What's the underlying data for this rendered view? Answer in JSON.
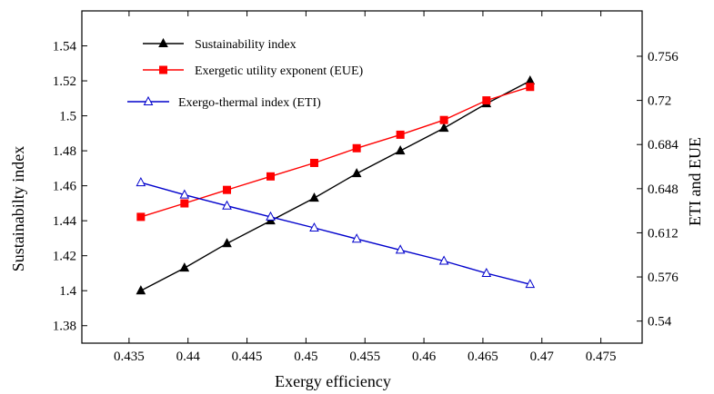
{
  "chart_data": {
    "type": "line",
    "title": "",
    "xlabel": "Exergy efficiency",
    "ylabel_left": "Sustainabilty index",
    "ylabel_right": "ETI and EUE",
    "xlim": [
      0.431,
      0.4785
    ],
    "ylim_left": [
      1.37,
      1.56
    ],
    "ylim_right": [
      0.522,
      0.793
    ],
    "x_ticks": [
      "0.435",
      "0.44",
      "0.445",
      "0.45",
      "0.455",
      "0.46",
      "0.465",
      "0.47",
      "0.475"
    ],
    "x_tick_values": [
      0.435,
      0.44,
      0.445,
      0.45,
      0.455,
      0.46,
      0.465,
      0.47,
      0.475
    ],
    "y_left_ticks": [
      "1.38",
      "1.4",
      "1.42",
      "1.44",
      "1.46",
      "1.48",
      "1.5",
      "1.52",
      "1.54"
    ],
    "y_left_tick_values": [
      1.38,
      1.4,
      1.42,
      1.44,
      1.46,
      1.48,
      1.5,
      1.52,
      1.54
    ],
    "y_right_ticks": [
      "0.54",
      "0.576",
      "0.612",
      "0.648",
      "0.684",
      "0.72",
      "0.756"
    ],
    "y_right_tick_values": [
      0.54,
      0.576,
      0.612,
      0.648,
      0.684,
      0.72,
      0.756
    ],
    "grid": false,
    "legend_position": "top-left",
    "series": [
      {
        "name": "Sustainability index",
        "axis": "left",
        "color": "#000000",
        "marker": "filled-triangle",
        "x": [
          0.436,
          0.4397,
          0.4433,
          0.447,
          0.4507,
          0.4543,
          0.458,
          0.4617,
          0.4653,
          0.469
        ],
        "y": [
          1.4,
          1.413,
          1.427,
          1.44,
          1.453,
          1.467,
          1.48,
          1.493,
          1.507,
          1.52
        ]
      },
      {
        "name": "Exergetic utility exponent (EUE)",
        "axis": "right",
        "color": "#ff0000",
        "marker": "filled-square",
        "x": [
          0.436,
          0.4397,
          0.4433,
          0.447,
          0.4507,
          0.4543,
          0.458,
          0.4617,
          0.4653,
          0.469
        ],
        "y": [
          0.625,
          0.636,
          0.647,
          0.658,
          0.669,
          0.681,
          0.692,
          0.704,
          0.72,
          0.731
        ]
      },
      {
        "name": "Exergo-thermal index (ETI)",
        "axis": "right",
        "color": "#0000cc",
        "marker": "open-triangle",
        "x": [
          0.436,
          0.4397,
          0.4433,
          0.447,
          0.4507,
          0.4543,
          0.458,
          0.4617,
          0.4653,
          0.469
        ],
        "y": [
          0.653,
          0.643,
          0.634,
          0.625,
          0.616,
          0.607,
          0.598,
          0.589,
          0.579,
          0.57
        ]
      }
    ]
  }
}
